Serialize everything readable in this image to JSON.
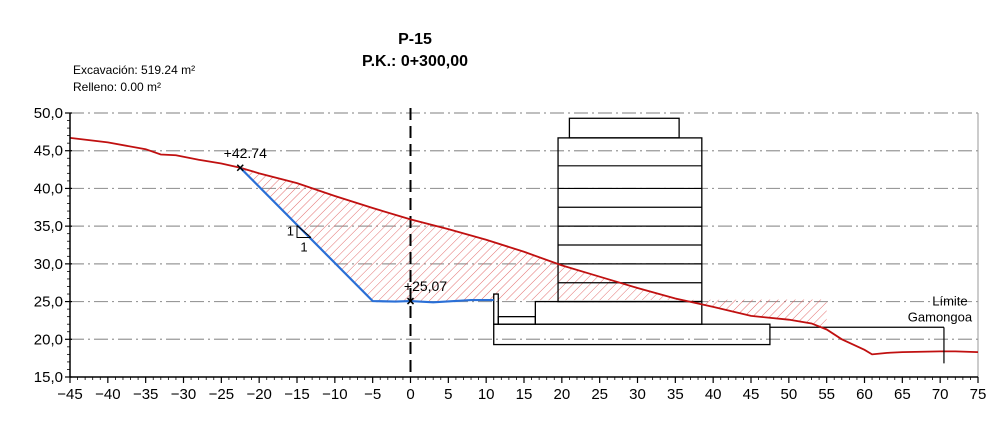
{
  "header": {
    "profile_id": "P-15",
    "chainage": "P.K.: 0+300,00"
  },
  "volumes": {
    "excavation": "Excavación: 519.24 m²",
    "fill": "Relleno: 0.00 m²"
  },
  "colors": {
    "terrain": "#c01010",
    "excavation_slope": "#2a6fd6",
    "hatch": "#e06060",
    "grid": "#999999",
    "structure": "#000000"
  },
  "chart_data": {
    "type": "cross-section",
    "x_range": [
      -45,
      75
    ],
    "y_range": [
      15,
      50
    ],
    "x_ticks": [
      -45,
      -40,
      -35,
      -30,
      -25,
      -20,
      -15,
      -10,
      -5,
      0,
      5,
      10,
      15,
      20,
      25,
      30,
      35,
      40,
      45,
      50,
      55,
      60,
      65,
      70,
      75
    ],
    "x_tick_labels": [
      "−45",
      "−40",
      "−35",
      "−30",
      "−25",
      "−20",
      "−15",
      "−10",
      "−5",
      "0",
      "5",
      "10",
      "15",
      "20",
      "25",
      "30",
      "35",
      "40",
      "45",
      "50",
      "55",
      "60",
      "65",
      "70",
      "75"
    ],
    "y_ticks": [
      15,
      20,
      25,
      30,
      35,
      40,
      45,
      50
    ],
    "y_tick_labels": [
      "15,0",
      "20,0",
      "25,0",
      "30,0",
      "35,0",
      "40,0",
      "45,0",
      "50,0"
    ],
    "grid_style": "dash-dot",
    "axis_line_x": 0,
    "terrain": [
      [
        -45,
        46.7
      ],
      [
        -40,
        46.1
      ],
      [
        -35,
        45.2
      ],
      [
        -33,
        44.5
      ],
      [
        -31,
        44.4
      ],
      [
        -28,
        43.8
      ],
      [
        -25,
        43.3
      ],
      [
        -22.5,
        42.74
      ],
      [
        -20,
        42.0
      ],
      [
        -15,
        40.7
      ],
      [
        -10,
        39.0
      ],
      [
        -5,
        37.4
      ],
      [
        0,
        35.9
      ],
      [
        5,
        34.6
      ],
      [
        10,
        33.2
      ],
      [
        15,
        31.6
      ],
      [
        20,
        29.8
      ],
      [
        25,
        28.3
      ],
      [
        30,
        26.8
      ],
      [
        35,
        25.4
      ],
      [
        40,
        24.3
      ],
      [
        45,
        23.1
      ],
      [
        50,
        22.6
      ],
      [
        53,
        22.1
      ],
      [
        55,
        21.3
      ],
      [
        57,
        20.0
      ],
      [
        60,
        18.6
      ],
      [
        61,
        18.0
      ],
      [
        63,
        18.2
      ],
      [
        65,
        18.3
      ],
      [
        70,
        18.4
      ],
      [
        72,
        18.4
      ],
      [
        75,
        18.3
      ]
    ],
    "excavation_line": [
      [
        -22.5,
        42.74
      ],
      [
        -5,
        25.07
      ],
      [
        -2,
        25.0
      ],
      [
        0,
        25.07
      ],
      [
        3,
        24.9
      ],
      [
        8,
        25.2
      ],
      [
        11,
        25.2
      ]
    ],
    "excavation_fill_top": [
      [
        -22.5,
        42.74
      ],
      [
        -20,
        42.0
      ],
      [
        -15,
        40.7
      ],
      [
        -10,
        39.0
      ],
      [
        -5,
        37.4
      ],
      [
        0,
        35.9
      ],
      [
        5,
        34.6
      ],
      [
        10,
        33.2
      ],
      [
        15,
        31.6
      ],
      [
        20,
        29.8
      ],
      [
        25,
        28.3
      ],
      [
        30,
        26.8
      ],
      [
        35,
        25.4
      ],
      [
        40,
        24.3
      ],
      [
        45,
        23.1
      ],
      [
        50,
        22.6
      ],
      [
        53,
        22.1
      ],
      [
        55,
        21.3
      ]
    ],
    "excavation_fill_bottom_level": 25.07,
    "slope_label": {
      "rise": "1",
      "run": "1",
      "x": -15,
      "y": 33.5
    },
    "point_labels": [
      {
        "text": "+42.74",
        "x": -22.5,
        "y": 42.74
      },
      {
        "text": "+25,07",
        "x": 0,
        "y": 25.07
      }
    ],
    "annotation": {
      "line1": "Límite",
      "line2": "Gamongoa",
      "x": 70.5,
      "y": 18.4
    },
    "structures": {
      "tower": {
        "x0": 19.5,
        "x1": 38.5,
        "y0": 25.0,
        "y1": 46.7,
        "floors": [
          43.0,
          40.0,
          37.5,
          35.0,
          32.5,
          30.0,
          27.5
        ]
      },
      "tower_top": {
        "x0": 21.0,
        "x1": 35.5,
        "y0": 46.7,
        "y1": 49.3
      },
      "podium": {
        "x0": 16.5,
        "x1": 38.5,
        "y0": 22.0,
        "y1": 25.0
      },
      "base": {
        "x0": 11.0,
        "x1": 47.5,
        "y0": 19.3,
        "y1": 22.0
      },
      "small_wall": {
        "x0": 11.0,
        "x1": 11.6,
        "y0": 22.0,
        "y1": 26.0
      },
      "small_box": {
        "x0": 11.6,
        "x1": 16.5,
        "y0": 22.0,
        "y1": 23.0
      },
      "ground_line": {
        "x0": 47.5,
        "x1": 70.5,
        "y": 21.6
      }
    }
  }
}
